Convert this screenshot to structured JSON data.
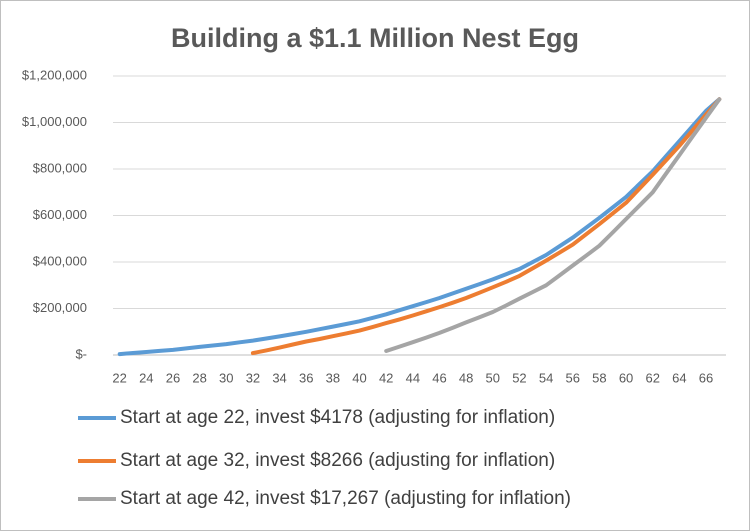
{
  "chart_data": {
    "type": "line",
    "title": "Building a $1.1 Million Nest Egg",
    "x": [
      22,
      23,
      24,
      25,
      26,
      27,
      28,
      29,
      30,
      31,
      32,
      33,
      34,
      35,
      36,
      37,
      38,
      39,
      40,
      41,
      42,
      43,
      44,
      45,
      46,
      47,
      48,
      49,
      50,
      51,
      52,
      53,
      54,
      55,
      56,
      57,
      58,
      59,
      60,
      61,
      62,
      63,
      64,
      65,
      66,
      67
    ],
    "xlim": [
      21.5,
      67.5
    ],
    "xticks": [
      22,
      24,
      26,
      28,
      30,
      32,
      34,
      36,
      38,
      40,
      42,
      44,
      46,
      48,
      50,
      52,
      54,
      56,
      58,
      60,
      62,
      64,
      66
    ],
    "ylim": [
      0,
      1200000
    ],
    "yticks": [
      {
        "value": 0,
        "label": "$-"
      },
      {
        "value": 200000,
        "label": "$200,000"
      },
      {
        "value": 400000,
        "label": "$400,000"
      },
      {
        "value": 600000,
        "label": "$600,000"
      },
      {
        "value": 800000,
        "label": "$800,000"
      },
      {
        "value": 1000000,
        "label": "$1,000,000"
      },
      {
        "value": 1200000,
        "label": "$1,200,000"
      }
    ],
    "grid": true,
    "legend": "bottom",
    "series": [
      {
        "name": "Start at age 22, invest $4178 (adjusting for inflation)",
        "color": "#5b9bd5",
        "values": [
          4000,
          8500,
          13000,
          17500,
          22000,
          28500,
          35000,
          41000,
          47000,
          54500,
          62000,
          71000,
          80000,
          90000,
          100000,
          111000,
          122000,
          133500,
          145000,
          160000,
          175000,
          192500,
          210000,
          227500,
          245000,
          265000,
          285000,
          305000,
          325000,
          347500,
          370000,
          400000,
          430000,
          467500,
          505000,
          547500,
          590000,
          635000,
          680000,
          735000,
          790000,
          855000,
          920000,
          985000,
          1050000,
          1100000
        ]
      },
      {
        "name": "Start at age 32, invest $8266 (adjusting for inflation)",
        "color": "#ed7d31",
        "values": [
          null,
          null,
          null,
          null,
          null,
          null,
          null,
          null,
          null,
          null,
          8266,
          20000,
          32000,
          45000,
          58000,
          69000,
          81000,
          93000,
          105000,
          121000,
          137000,
          153000,
          170000,
          188000,
          206000,
          225000,
          245000,
          268000,
          291000,
          315000,
          340000,
          373000,
          406000,
          440000,
          475000,
          519000,
          563000,
          609000,
          655000,
          715000,
          775000,
          837000,
          900000,
          967000,
          1034000,
          1100000
        ]
      },
      {
        "name": "Start at age 42, invest $17,267 (adjusting for inflation)",
        "color": "#a5a5a5",
        "values": [
          null,
          null,
          null,
          null,
          null,
          null,
          null,
          null,
          null,
          null,
          null,
          null,
          null,
          null,
          null,
          null,
          null,
          null,
          null,
          null,
          17267,
          36000,
          55000,
          75000,
          95000,
          117000,
          140000,
          162000,
          185000,
          213000,
          242000,
          271000,
          300000,
          342000,
          385000,
          427000,
          470000,
          527000,
          585000,
          642000,
          700000,
          780000,
          860000,
          940000,
          1020000,
          1100000
        ]
      }
    ]
  }
}
